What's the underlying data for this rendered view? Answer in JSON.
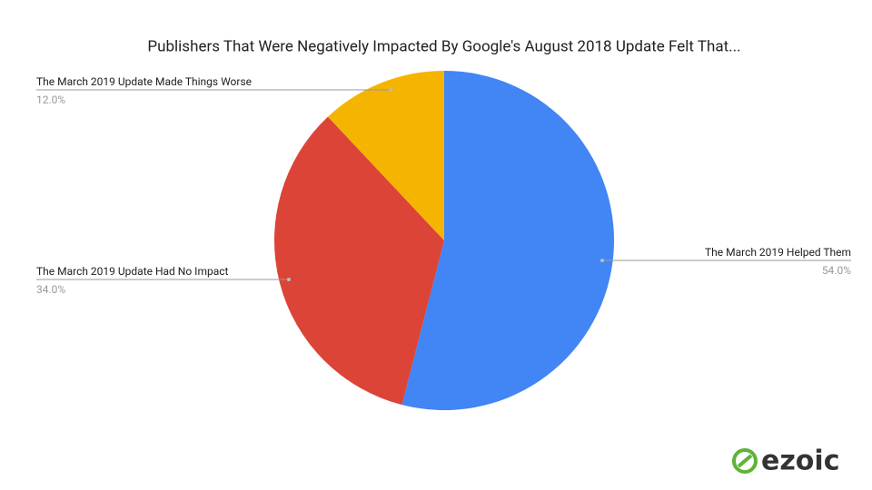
{
  "chart_data": {
    "type": "pie",
    "title": "Publishers That Were Negatively Impacted By Google's August 2018 Update Felt That...",
    "categories": [
      "The March 2019 Helped Them",
      "The March 2019 Update Had No Impact",
      "The March 2019 Update Made Things Worse"
    ],
    "values": [
      54,
      34,
      12
    ],
    "value_labels": [
      "54.0%",
      "34.0%",
      "12.0%"
    ],
    "colors": [
      "#4285f4",
      "#db4437",
      "#f4b400"
    ]
  },
  "logo": "ezoic"
}
